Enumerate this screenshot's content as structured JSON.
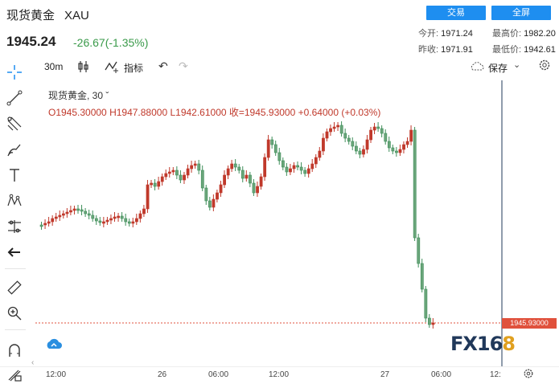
{
  "header": {
    "name": "现货黄金",
    "symbol": "XAU",
    "last_price": "1945.24",
    "change": "-26.67(-1.35%)",
    "trade_button": "交易",
    "fullscreen_button": "全屏",
    "stats": {
      "open_label": "今开:",
      "open_value": "1971.24",
      "high_label": "最高价:",
      "high_value": "1982.20",
      "prev_close_label": "昨收:",
      "prev_close_value": "1971.91",
      "low_label": "最低价:",
      "low_value": "1942.61"
    }
  },
  "toolbar": {
    "interval": "30m",
    "indicators_label": "指标",
    "save_label": "保存"
  },
  "legend": {
    "title": "现货黄金, 30",
    "ohlc": "O1945.30000   H1947.88000   L1942.61000   收=1945.93000   +0.64000  (+0.03%)"
  },
  "chart": {
    "current_price_tag": "1945.93000",
    "x_ticks": [
      "12:00",
      "26",
      "06:00",
      "12:00",
      "27",
      "06:00",
      "12:"
    ]
  },
  "watermark": {
    "text": "FX16",
    "accent": "8"
  },
  "colors": {
    "up": "#c0392b",
    "down": "#3f8f5a",
    "accent": "#1e8ef0"
  },
  "chart_data": {
    "type": "candlestick",
    "x_tick_labels": [
      "12:00",
      "26",
      "06:00",
      "12:00",
      "27",
      "06:00",
      "12:"
    ],
    "price_range_approx": [
      1940,
      1975
    ],
    "last_close": 1945.93
  }
}
